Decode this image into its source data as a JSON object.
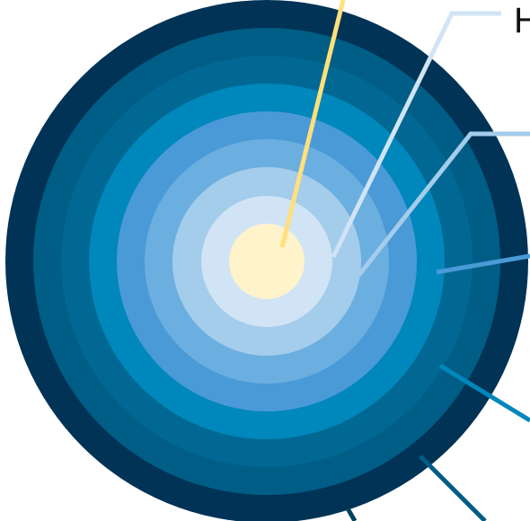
{
  "diagram": {
    "type": "concentric-rings",
    "rings": [
      {
        "color": "#003356"
      },
      {
        "color": "#00435F"
      },
      {
        "color": "#005D85"
      },
      {
        "color": "#006893"
      },
      {
        "color": "#0087BC"
      },
      {
        "color": "#4A9AD7"
      },
      {
        "color": "#6BAEE0"
      },
      {
        "color": "#A4CCEB"
      },
      {
        "color": "#D0E4F5"
      },
      {
        "color": "#FFF3CC"
      }
    ],
    "callouts": [
      {
        "label": "",
        "color": "#FFE07A"
      },
      {
        "label": "H",
        "color": "#D0E4F5"
      },
      {
        "label": "",
        "color": "#A4CCEB"
      },
      {
        "label": "",
        "color": "#4A9AD7"
      },
      {
        "label": "",
        "color": "#0087BC"
      },
      {
        "label": "",
        "color": "#005D85"
      },
      {
        "label": "",
        "color": "#00435F"
      }
    ]
  }
}
